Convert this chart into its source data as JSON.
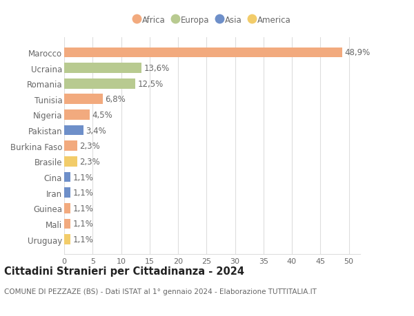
{
  "categories": [
    "Marocco",
    "Ucraina",
    "Romania",
    "Tunisia",
    "Nigeria",
    "Pakistan",
    "Burkina Faso",
    "Brasile",
    "Cina",
    "Iran",
    "Guinea",
    "Mali",
    "Uruguay"
  ],
  "values": [
    48.9,
    13.6,
    12.5,
    6.8,
    4.5,
    3.4,
    2.3,
    2.3,
    1.1,
    1.1,
    1.1,
    1.1,
    1.1
  ],
  "labels": [
    "48,9%",
    "13,6%",
    "12,5%",
    "6,8%",
    "4,5%",
    "3,4%",
    "2,3%",
    "2,3%",
    "1,1%",
    "1,1%",
    "1,1%",
    "1,1%",
    "1,1%"
  ],
  "continents": [
    "Africa",
    "Europa",
    "Europa",
    "Africa",
    "Africa",
    "Asia",
    "Africa",
    "America",
    "Asia",
    "Asia",
    "Africa",
    "Africa",
    "America"
  ],
  "colors": {
    "Africa": "#F2AA7E",
    "Europa": "#B8CA90",
    "Asia": "#6E8FC9",
    "America": "#F2CC6A"
  },
  "legend_order": [
    "Africa",
    "Europa",
    "Asia",
    "America"
  ],
  "xlim": [
    0,
    52
  ],
  "xticks": [
    0,
    5,
    10,
    15,
    20,
    25,
    30,
    35,
    40,
    45,
    50
  ],
  "title": "Cittadini Stranieri per Cittadinanza - 2024",
  "subtitle": "COMUNE DI PEZZAZE (BS) - Dati ISTAT al 1° gennaio 2024 - Elaborazione TUTTITALIA.IT",
  "background_color": "#ffffff",
  "grid_color": "#dddddd",
  "bar_height": 0.65,
  "label_fontsize": 8.5,
  "ytick_fontsize": 8.5,
  "xtick_fontsize": 8,
  "title_fontsize": 10.5,
  "subtitle_fontsize": 7.5,
  "text_color": "#666666",
  "title_color": "#222222"
}
